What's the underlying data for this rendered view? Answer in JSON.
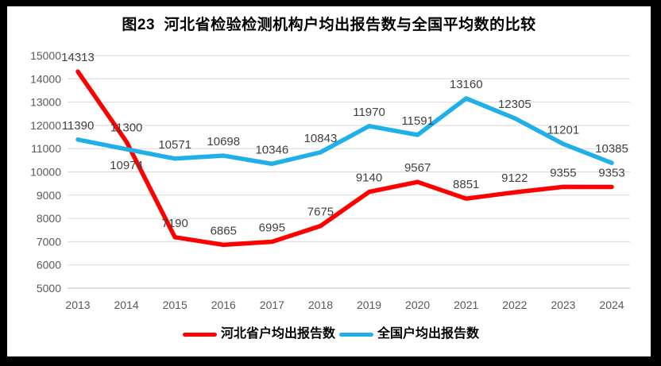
{
  "title": "图23  河北省检验检测机构户均出报告数与全国平均数的比较",
  "frame": {
    "border_color": "#000000",
    "background": "#ffffff"
  },
  "chart_data": {
    "type": "line",
    "title": "图23  河北省检验检测机构户均出报告数与全国平均数的比较",
    "categories": [
      "2013",
      "2014",
      "2015",
      "2016",
      "2017",
      "2018",
      "2019",
      "2020",
      "2021",
      "2022",
      "2023",
      "2024"
    ],
    "series": [
      {
        "name": "河北省户均出报告数",
        "color": "#FF0000",
        "values": [
          14313,
          11300,
          7190,
          6865,
          6995,
          7675,
          9140,
          9567,
          8851,
          9122,
          9355,
          9353
        ],
        "labels_below_indices": []
      },
      {
        "name": "全国户均出报告数",
        "color": "#20B0E8",
        "values": [
          11390,
          10974,
          10571,
          10698,
          10346,
          10843,
          11970,
          11591,
          13160,
          12305,
          11201,
          10385
        ],
        "labels_below_indices": [
          1
        ]
      }
    ],
    "ylim": [
      5000,
      15000
    ],
    "yticks": [
      5000,
      6000,
      7000,
      8000,
      9000,
      10000,
      11000,
      12000,
      13000,
      14000,
      15000
    ],
    "xlabel": "",
    "ylabel": "",
    "grid": "horizontal",
    "data_labels": true,
    "legend_position": "bottom",
    "colors": {
      "gridline": "#D9D9D9",
      "axis_line": "#BFBFBF",
      "axis_tick_label": "#595959",
      "data_label": "#404040"
    }
  }
}
